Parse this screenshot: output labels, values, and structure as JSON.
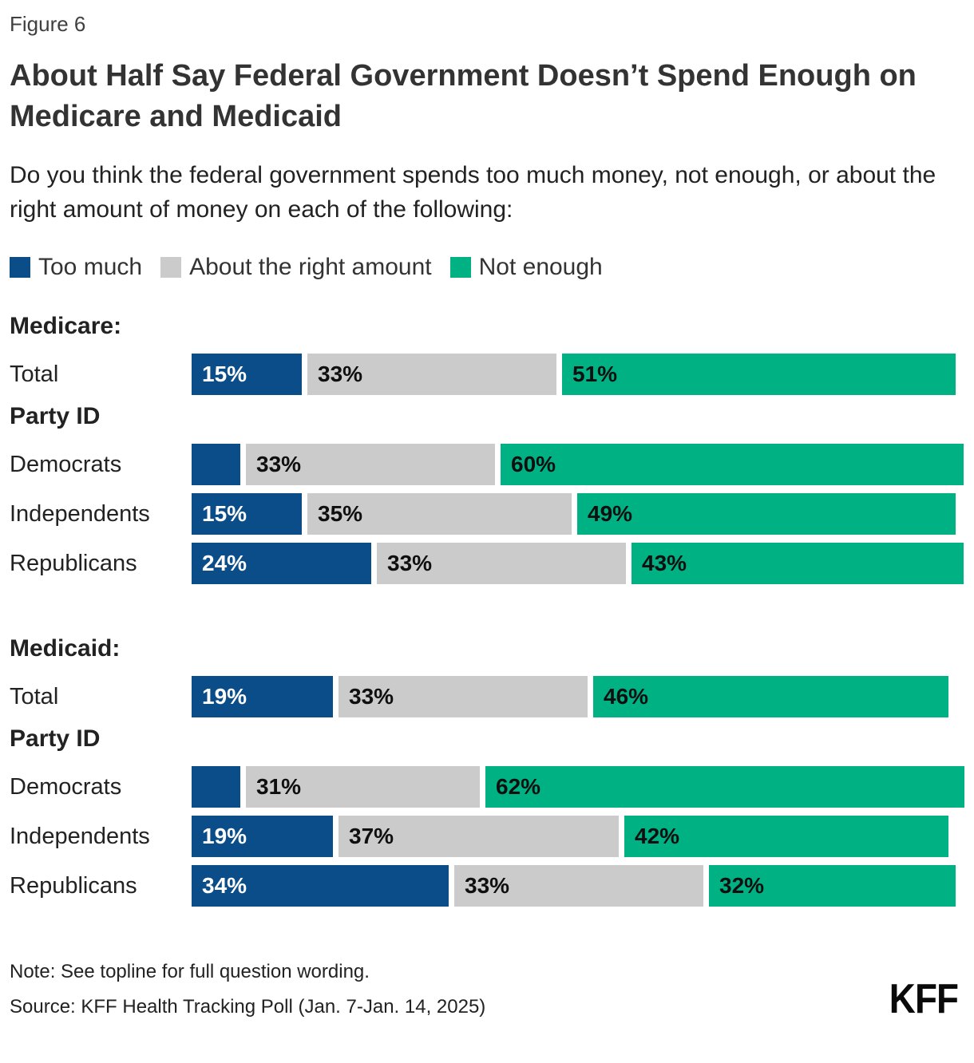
{
  "figure_label": "Figure 6",
  "title": "About Half Say Federal Government Doesn’t Spend Enough on Medicare and Medicaid",
  "subtitle": "Do you think the federal government spends too much money, not enough, or about the right amount of money on each of the following:",
  "colors": {
    "too_much": "#0B4D89",
    "about_right": "#CBCBCB",
    "not_enough": "#00B184",
    "label_on_dark": "#FFFFFF",
    "label_on_light": "#0F0F0F"
  },
  "legend": {
    "items": [
      {
        "label": "Too much",
        "color_key": "too_much"
      },
      {
        "label": "About the right amount",
        "color_key": "about_right"
      },
      {
        "label": "Not enough",
        "color_key": "not_enough"
      }
    ]
  },
  "chart_data": {
    "type": "bar",
    "variant": "horizontal-stacked",
    "unit": "percent",
    "axis": {
      "x_min": 0,
      "x_max": 100,
      "gridlines": false
    },
    "legend_position": "top",
    "series_names": [
      "Too much",
      "About the right amount",
      "Not enough"
    ],
    "sections": [
      {
        "heading": "Medicare:",
        "total_row": {
          "label": "Total",
          "values": [
            15,
            33,
            51
          ],
          "display": [
            "15%",
            "33%",
            "51%"
          ]
        },
        "party_heading": "Party ID",
        "party_rows": [
          {
            "label": "Democrats",
            "values": [
              7,
              33,
              60
            ],
            "display": [
              "",
              "33%",
              "60%"
            ]
          },
          {
            "label": "Independents",
            "values": [
              15,
              35,
              49
            ],
            "display": [
              "15%",
              "35%",
              "49%"
            ]
          },
          {
            "label": "Republicans",
            "values": [
              24,
              33,
              43
            ],
            "display": [
              "24%",
              "33%",
              "43%"
            ]
          }
        ]
      },
      {
        "heading": "Medicaid:",
        "total_row": {
          "label": "Total",
          "values": [
            19,
            33,
            46
          ],
          "display": [
            "19%",
            "33%",
            "46%"
          ]
        },
        "party_heading": "Party ID",
        "party_rows": [
          {
            "label": "Democrats",
            "values": [
              7,
              31,
              62
            ],
            "display": [
              "",
              "31%",
              "62%"
            ]
          },
          {
            "label": "Independents",
            "values": [
              19,
              37,
              42
            ],
            "display": [
              "19%",
              "37%",
              "42%"
            ]
          },
          {
            "label": "Republicans",
            "values": [
              34,
              33,
              32
            ],
            "display": [
              "34%",
              "33%",
              "32%"
            ]
          }
        ]
      }
    ]
  },
  "footer": {
    "note": "Note: See topline for full question wording.",
    "source": "Source: KFF Health Tracking Poll (Jan. 7-Jan. 14, 2025)",
    "logo": "KFF"
  }
}
